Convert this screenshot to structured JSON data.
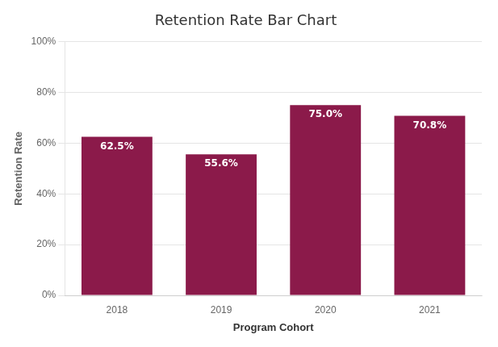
{
  "chart_data": {
    "type": "bar",
    "title": "Retention Rate Bar Chart",
    "xlabel": "Program Cohort",
    "ylabel": "Retention Rate",
    "categories": [
      "2018",
      "2019",
      "2020",
      "2021"
    ],
    "values": [
      62.5,
      55.6,
      75.0,
      70.8
    ],
    "value_labels": [
      "62.5%",
      "55.6%",
      "75.0%",
      "70.8%"
    ],
    "data_labels": true,
    "color": "#8B1A4A",
    "ylim": [
      0,
      100
    ],
    "yticks": [
      {
        "value": 0,
        "label": "0%"
      },
      {
        "value": 20,
        "label": "20%"
      },
      {
        "value": 40,
        "label": "40%"
      },
      {
        "value": 60,
        "label": "60%"
      },
      {
        "value": 80,
        "label": "80%"
      },
      {
        "value": 100,
        "label": "100%"
      }
    ],
    "grid": true
  }
}
